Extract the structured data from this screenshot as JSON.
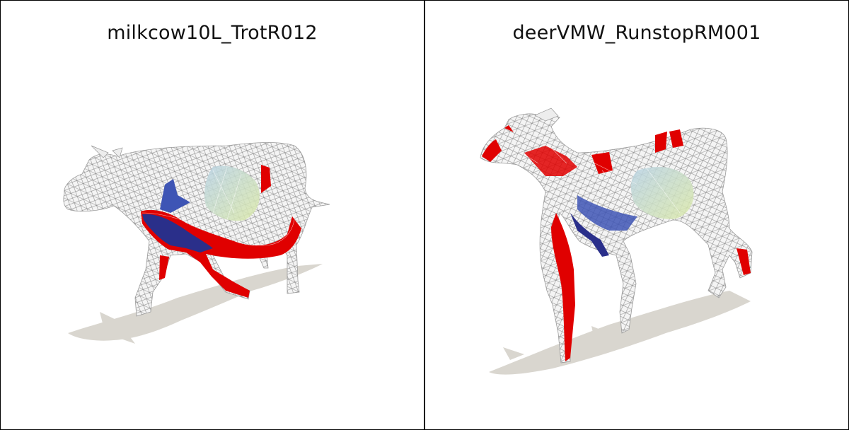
{
  "panels": [
    {
      "title": "milkcow10L_TrotR012",
      "subject": "cow-mesh-render"
    },
    {
      "title": "deerVMW_RunstopRM001",
      "subject": "deer-mesh-render"
    }
  ],
  "colors": {
    "background": "#ffffff",
    "shadow": "#d9d6cf",
    "mesh": "#e6e6e6",
    "red": "#e00000",
    "blue": "#3344aa",
    "green": "#c8e0a8"
  }
}
